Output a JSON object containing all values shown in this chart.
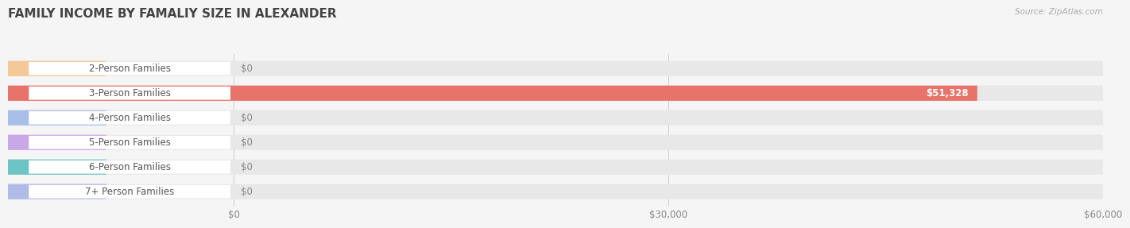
{
  "title": "FAMILY INCOME BY FAMALIY SIZE IN ALEXANDER",
  "source": "Source: ZipAtlas.com",
  "categories": [
    "2-Person Families",
    "3-Person Families",
    "4-Person Families",
    "5-Person Families",
    "6-Person Families",
    "7+ Person Families"
  ],
  "values": [
    0,
    51328,
    0,
    0,
    0,
    0
  ],
  "bar_colors": [
    "#f5c897",
    "#e8736a",
    "#a8bfe8",
    "#c9a8e8",
    "#6dc4c4",
    "#b0bce8"
  ],
  "max_value": 60000,
  "xticks": [
    0,
    30000,
    60000
  ],
  "xtick_labels": [
    "$0",
    "$30,000",
    "$60,000"
  ],
  "background_color": "#f5f5f5",
  "bar_bg_color": "#e8e8e8",
  "value_label_nonzero": "$51,328",
  "value_label_zero": "$0",
  "title_fontsize": 11,
  "label_fontsize": 8.5,
  "tick_fontsize": 8.5
}
